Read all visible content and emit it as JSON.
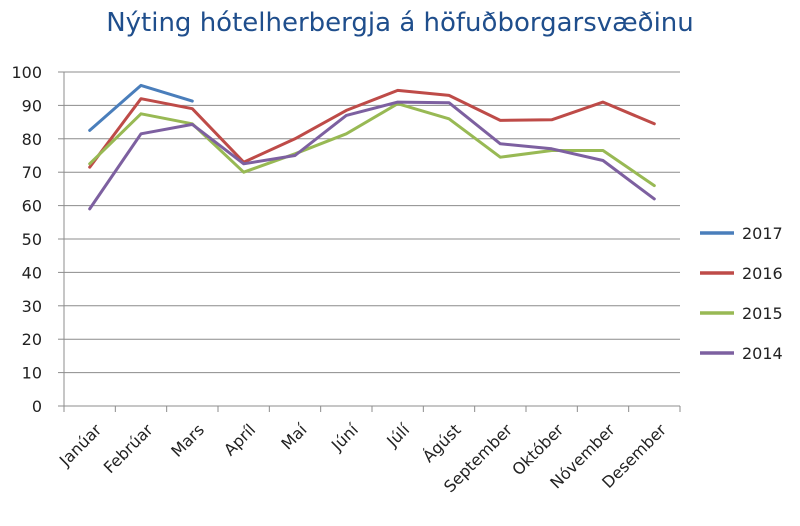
{
  "chart_data": {
    "type": "line",
    "title": "Nýting hótelherbergja á höfuðborgarsvæðinu",
    "xlabel": "",
    "ylabel": "",
    "ylim": [
      0,
      100
    ],
    "yticks": [
      0,
      10,
      20,
      30,
      40,
      50,
      60,
      70,
      80,
      90,
      100
    ],
    "grid": "horizontal",
    "legend_position": "right",
    "categories": [
      "Janúar",
      "Febrúar",
      "Mars",
      "Apríl",
      "Maí",
      "Júní",
      "Júlí",
      "Ágúst",
      "September",
      "Október",
      "Nóvember",
      "Desember"
    ],
    "series": [
      {
        "name": "2017",
        "color": "#4a7ebb",
        "values": [
          82.5,
          96,
          91.3,
          null,
          null,
          null,
          null,
          null,
          null,
          null,
          null,
          null
        ]
      },
      {
        "name": "2016",
        "color": "#be4b48",
        "values": [
          71.5,
          92,
          89,
          73,
          80,
          88.5,
          94.5,
          93,
          85.5,
          85.7,
          91,
          84.5
        ]
      },
      {
        "name": "2015",
        "color": "#98b954",
        "values": [
          72.5,
          87.5,
          84.5,
          70,
          75.5,
          81.5,
          90.5,
          86,
          74.5,
          76.5,
          76.5,
          66
        ]
      },
      {
        "name": "2014",
        "color": "#7d60a0",
        "values": [
          59,
          81.5,
          84.3,
          72.5,
          75,
          87,
          91,
          90.8,
          78.5,
          77,
          73.5,
          62
        ]
      }
    ]
  }
}
